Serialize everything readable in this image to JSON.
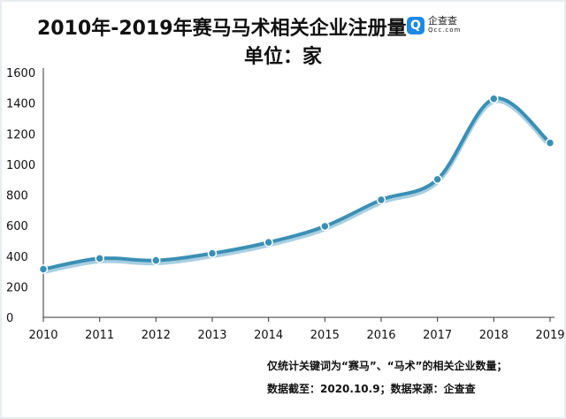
{
  "chart_data": {
    "type": "line",
    "title": "2010年-2019年赛马马术相关企业注册量",
    "subtitle": "单位：家",
    "x": [
      "2010",
      "2011",
      "2012",
      "2013",
      "2014",
      "2015",
      "2016",
      "2017",
      "2018",
      "2019"
    ],
    "series": [
      {
        "name": "注册量",
        "values": [
          315,
          385,
          372,
          418,
          490,
          595,
          768,
          902,
          1428,
          1140
        ]
      }
    ],
    "yticks": [
      "0",
      "200",
      "400",
      "600",
      "800",
      "1000",
      "1200",
      "1400",
      "1600"
    ],
    "ylim": [
      0,
      1600
    ],
    "xlabel": "",
    "ylabel": "",
    "grid": false,
    "line_color": "#3a8fb5",
    "shadow_color": "#a9cfe0"
  },
  "logo": {
    "icon": "Q",
    "name": "企查查",
    "domain": "Qcc.com"
  },
  "notes": [
    "仅统计关键词为“赛马”、“马术”的相关企业数量；",
    "数据截至：2020.10.9；数据来源：企查查"
  ]
}
